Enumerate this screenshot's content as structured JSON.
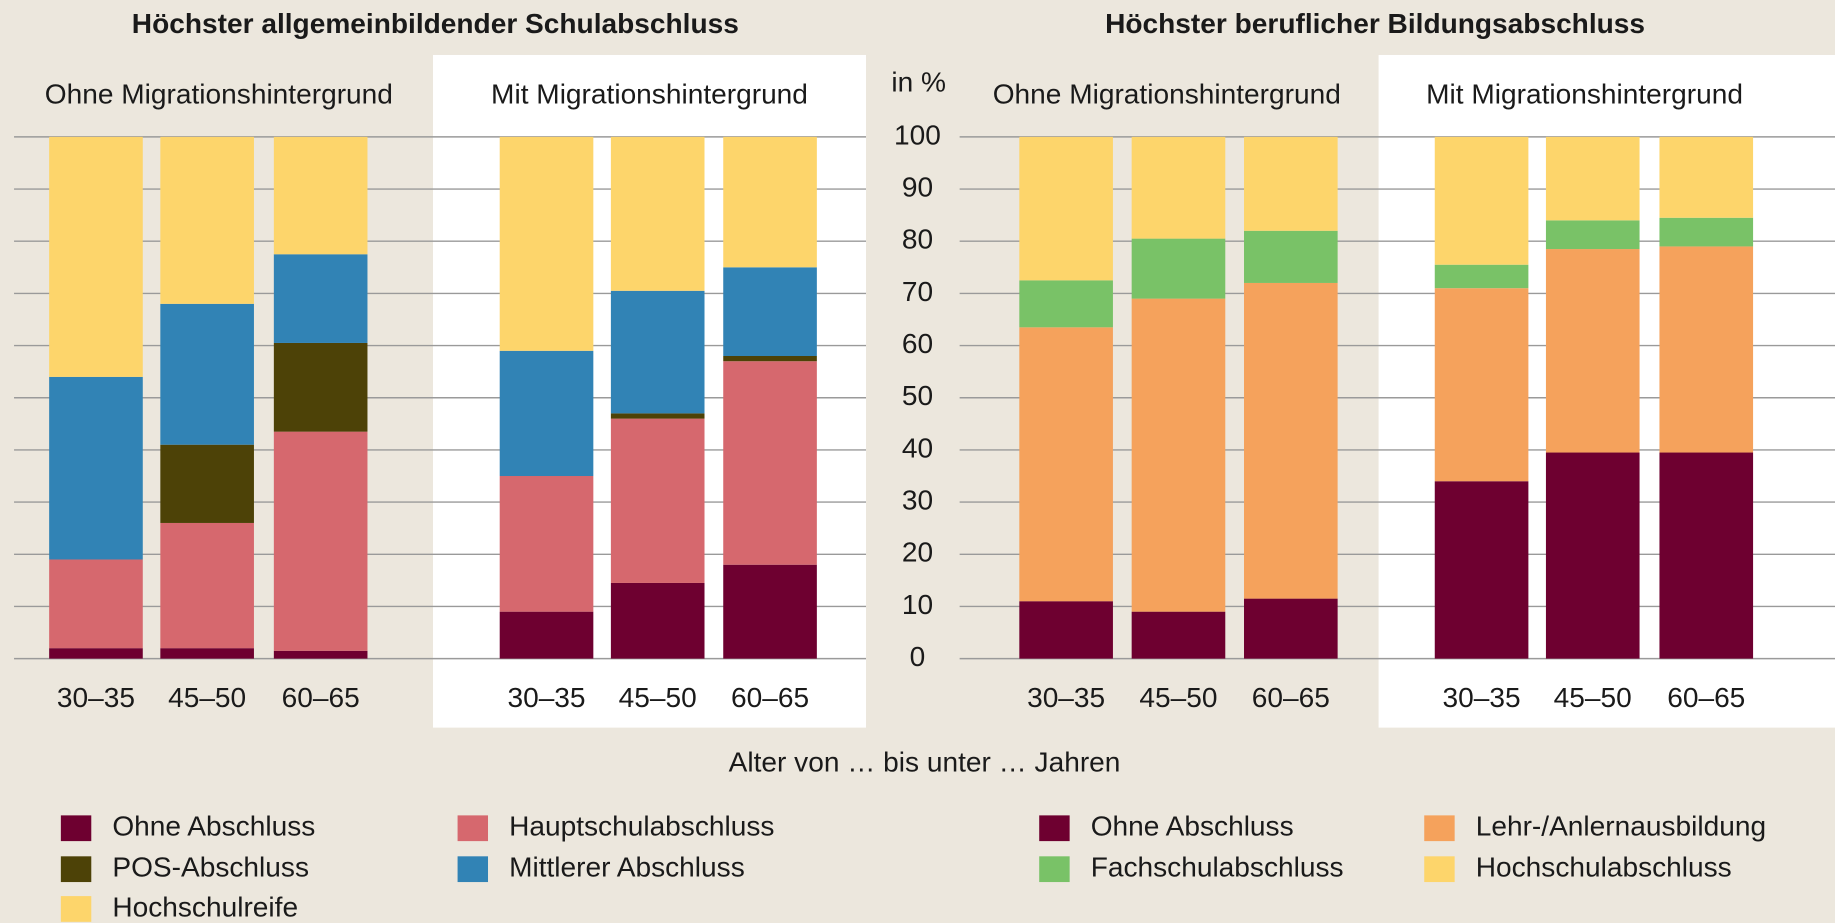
{
  "chart_data": [
    {
      "type": "stacked_bar",
      "title": "Höchster allgemeinbildender Schulabschluss",
      "x_label": "Alter von … bis unter … Jahren",
      "panels": [
        "Ohne Migrationshintergrund",
        "Mit Migrationshintergrund"
      ],
      "categories": [
        "30–35",
        "45–50",
        "60–65"
      ],
      "series": [
        {
          "name": "Ohne Abschluss",
          "color": "#6e0030",
          "values": [
            [
              2,
              2,
              1.5
            ],
            [
              9,
              14.5,
              18
            ]
          ]
        },
        {
          "name": "Hauptschulabschluss",
          "color": "#d6686e",
          "values": [
            [
              17,
              24,
              42
            ],
            [
              26,
              31.5,
              39
            ]
          ]
        },
        {
          "name": "POS-Abschluss",
          "color": "#4d4207",
          "values": [
            [
              0,
              15,
              17
            ],
            [
              0,
              1,
              1
            ]
          ]
        },
        {
          "name": "Mittlerer Abschluss",
          "color": "#3183b5",
          "values": [
            [
              35,
              27,
              17
            ],
            [
              24,
              23.5,
              17
            ]
          ]
        },
        {
          "name": "Hochschulreife",
          "color": "#fdd56b",
          "values": [
            [
              46,
              32,
              22.5
            ],
            [
              41,
              29.5,
              25
            ]
          ]
        }
      ]
    },
    {
      "type": "stacked_bar",
      "title": "Höchster beruflicher Bildungsabschluss",
      "y_label": "in %",
      "ylim": [
        0,
        100
      ],
      "yticks": [
        0,
        10,
        20,
        30,
        40,
        50,
        60,
        70,
        80,
        90,
        100
      ],
      "grid": true,
      "panels": [
        "Ohne Migrationshintergrund",
        "Mit Migrationshintergrund"
      ],
      "categories": [
        "30–35",
        "45–50",
        "60–65"
      ],
      "series": [
        {
          "name": "Ohne Abschluss",
          "color": "#6e0030",
          "values": [
            [
              11,
              9,
              11.5
            ],
            [
              34,
              39.5,
              39.5
            ]
          ]
        },
        {
          "name": "Lehr-/Anlernausbildung",
          "color": "#f5a25c",
          "values": [
            [
              52.5,
              60,
              60.5
            ],
            [
              37,
              39,
              39.5
            ]
          ]
        },
        {
          "name": "Fachschulabschluss",
          "color": "#79c267",
          "values": [
            [
              9,
              11.5,
              10
            ],
            [
              4.5,
              5.5,
              5.5
            ]
          ]
        },
        {
          "name": "Hochschulabschluss",
          "color": "#fdd56b",
          "values": [
            [
              27.5,
              19.5,
              18
            ],
            [
              24.5,
              16,
              15.5
            ]
          ]
        }
      ]
    }
  ]
}
